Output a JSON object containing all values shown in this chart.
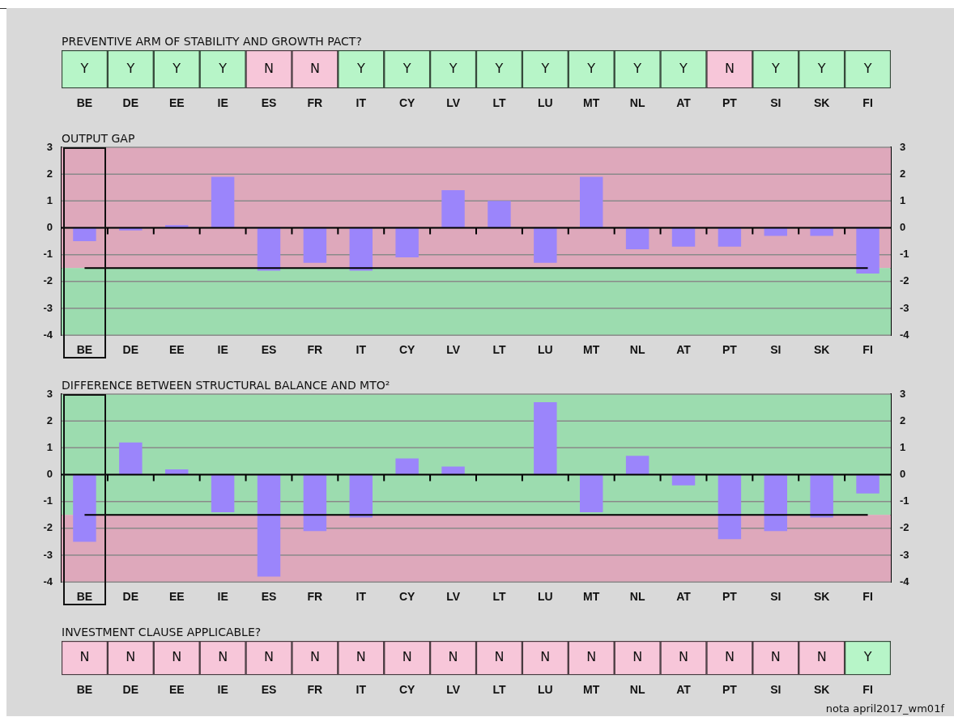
{
  "chart_data": [
    {
      "type": "other",
      "title": "PREVENTIVE ARM OF STABILITY AND GROWTH PACT?",
      "categories": [
        "BE",
        "DE",
        "EE",
        "IE",
        "ES",
        "FR",
        "IT",
        "CY",
        "LV",
        "LT",
        "LU",
        "MT",
        "NL",
        "AT",
        "PT",
        "SI",
        "SK",
        "FI"
      ],
      "cell_labels": [
        [
          "Y",
          "Y",
          "Y",
          "Y",
          "N",
          "N",
          "Y",
          "Y",
          "Y",
          "Y",
          "Y",
          "Y",
          "Y",
          "Y",
          "N",
          "Y",
          "Y",
          "Y"
        ]
      ],
      "colors": [
        "#b7f5c8",
        "#b7f5c8",
        "#b7f5c8",
        "#b7f5c8",
        "#f7c6d9",
        "#f7c6d9",
        "#b7f5c8",
        "#b7f5c8",
        "#b7f5c8",
        "#b7f5c8",
        "#b7f5c8",
        "#b7f5c8",
        "#b7f5c8",
        "#b7f5c8",
        "#f7c6d9",
        "#b7f5c8",
        "#b7f5c8",
        "#b7f5c8"
      ]
    },
    {
      "type": "bar",
      "title": "OUTPUT GAP",
      "categories": [
        "BE",
        "DE",
        "EE",
        "IE",
        "ES",
        "FR",
        "IT",
        "CY",
        "LV",
        "LT",
        "LU",
        "MT",
        "NL",
        "AT",
        "PT",
        "SI",
        "SK",
        "FI"
      ],
      "series": [
        {
          "color": "#9b85fb",
          "values": [
            -0.5,
            -0.1,
            0.1,
            1.9,
            -1.6,
            -1.3,
            -1.6,
            -1.1,
            1.4,
            1.0,
            -1.3,
            1.9,
            -0.8,
            -0.7,
            -0.7,
            -0.3,
            -0.3,
            -1.7
          ]
        }
      ],
      "ylim": [
        -4,
        3
      ],
      "yticks": [
        -4,
        -3,
        -2,
        -1,
        0,
        1,
        2,
        3
      ],
      "y2lim": [
        -4,
        3
      ],
      "y2ticks": [
        -4,
        -3,
        -2,
        -1,
        0,
        1,
        2,
        3
      ],
      "grid": "y",
      "legend": false,
      "ref_lines": [
        {
          "axis": "y",
          "value": -1.5,
          "color": "#000000"
        }
      ],
      "bands": [
        {
          "axis": "y",
          "from": -1.5,
          "to": 3,
          "color": "#dea8bb"
        },
        {
          "axis": "y",
          "from": -4,
          "to": -1.5,
          "color": "#9cdcaf"
        }
      ]
    },
    {
      "type": "bar",
      "title": "DIFFERENCE BETWEEN STRUCTURAL BALANCE AND MTO²",
      "categories": [
        "BE",
        "DE",
        "EE",
        "IE",
        "ES",
        "FR",
        "IT",
        "CY",
        "LV",
        "LT",
        "LU",
        "MT",
        "NL",
        "AT",
        "PT",
        "SI",
        "SK",
        "FI"
      ],
      "series": [
        {
          "color": "#9b85fb",
          "values": [
            -2.5,
            1.2,
            0.2,
            -1.4,
            -3.8,
            -2.1,
            -1.6,
            0.6,
            0.3,
            0,
            2.7,
            -1.4,
            0.7,
            -0.4,
            -2.4,
            -2.1,
            -1.6,
            -0.7
          ]
        }
      ],
      "ylim": [
        -4,
        3
      ],
      "yticks": [
        -4,
        -3,
        -2,
        -1,
        0,
        1,
        2,
        3
      ],
      "y2lim": [
        -4,
        3
      ],
      "y2ticks": [
        -4,
        -3,
        -2,
        -1,
        0,
        1,
        2,
        3
      ],
      "grid": "y",
      "legend": false,
      "ref_lines": [
        {
          "axis": "y",
          "value": -1.5,
          "color": "#000000"
        }
      ],
      "bands": [
        {
          "axis": "y",
          "from": -1.5,
          "to": 3,
          "color": "#9cdcaf"
        },
        {
          "axis": "y",
          "from": -4,
          "to": -1.5,
          "color": "#dea8bb"
        }
      ]
    },
    {
      "type": "other",
      "title": "INVESTMENT CLAUSE APPLICABLE?",
      "categories": [
        "BE",
        "DE",
        "EE",
        "IE",
        "ES",
        "FR",
        "IT",
        "CY",
        "LV",
        "LT",
        "LU",
        "MT",
        "NL",
        "AT",
        "PT",
        "SI",
        "SK",
        "FI"
      ],
      "cell_labels": [
        [
          "N",
          "N",
          "N",
          "N",
          "N",
          "N",
          "N",
          "N",
          "N",
          "N",
          "N",
          "N",
          "N",
          "N",
          "N",
          "N",
          "N",
          "Y"
        ]
      ],
      "colors": [
        "#f7c6d9",
        "#f7c6d9",
        "#f7c6d9",
        "#f7c6d9",
        "#f7c6d9",
        "#f7c6d9",
        "#f7c6d9",
        "#f7c6d9",
        "#f7c6d9",
        "#f7c6d9",
        "#f7c6d9",
        "#f7c6d9",
        "#f7c6d9",
        "#f7c6d9",
        "#f7c6d9",
        "#f7c6d9",
        "#f7c6d9",
        "#b7f5c8"
      ],
      "annotations": [
        "nota april2017_wm01f"
      ]
    }
  ]
}
